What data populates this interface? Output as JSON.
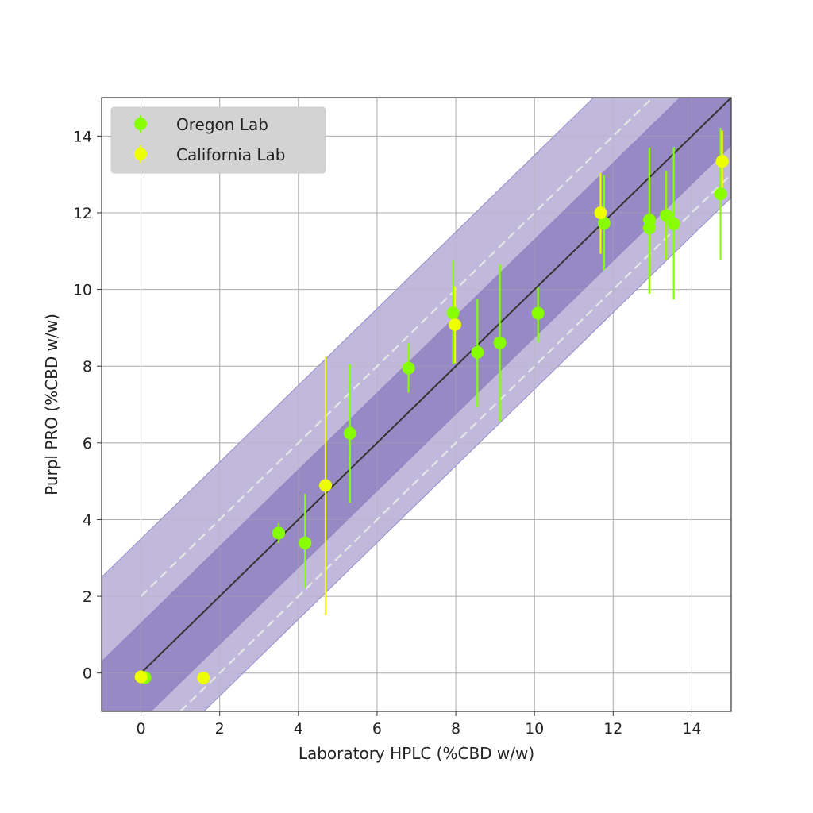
{
  "chart_data": {
    "type": "scatter",
    "xlabel": "Laboratory HPLC (%CBD w/w)",
    "ylabel": "Purpl PRO (%CBD w/w)",
    "xlim": [
      -1,
      15
    ],
    "ylim": [
      -1,
      15
    ],
    "xticks": [
      0,
      2,
      4,
      6,
      8,
      10,
      12,
      14
    ],
    "yticks": [
      0,
      2,
      4,
      6,
      8,
      10,
      12,
      14
    ],
    "grid": true,
    "legend": {
      "placement": "top-left"
    },
    "reference_line": {
      "slope": 1,
      "intercept": 0,
      "color": "#333333"
    },
    "dashed_lines": {
      "offsets": [
        2,
        -2
      ],
      "color": "#e6e6e6"
    },
    "bands": {
      "inner": {
        "upper_offset": 1.3,
        "lower_offset": -1.25,
        "color": "#978ac4"
      },
      "outer": {
        "upper_offset": 3.5,
        "lower_offset": -2.6,
        "color": "#c0b9dc"
      }
    },
    "series": [
      {
        "name": "Oregon Lab",
        "color": "#88ff00",
        "points": [
          {
            "x": 0.1,
            "y": -0.12,
            "ylow": -0.12,
            "yhigh": -0.12
          },
          {
            "x": 3.5,
            "y": 3.65,
            "ylow": 3.39,
            "yhigh": 3.91
          },
          {
            "x": 4.17,
            "y": 3.39,
            "ylow": 2.22,
            "yhigh": 4.67
          },
          {
            "x": 5.31,
            "y": 6.25,
            "ylow": 4.44,
            "yhigh": 8.05
          },
          {
            "x": 6.8,
            "y": 7.95,
            "ylow": 7.31,
            "yhigh": 8.6
          },
          {
            "x": 7.93,
            "y": 9.39,
            "ylow": 8.05,
            "yhigh": 10.75
          },
          {
            "x": 8.55,
            "y": 8.36,
            "ylow": 6.94,
            "yhigh": 9.76
          },
          {
            "x": 9.12,
            "y": 8.61,
            "ylow": 6.56,
            "yhigh": 10.65
          },
          {
            "x": 10.09,
            "y": 9.38,
            "ylow": 8.62,
            "yhigh": 10.05
          },
          {
            "x": 11.77,
            "y": 11.73,
            "ylow": 10.5,
            "yhigh": 12.98
          },
          {
            "x": 12.92,
            "y": 11.81,
            "ylow": 9.89,
            "yhigh": 13.69
          },
          {
            "x": 12.92,
            "y": 11.6,
            "ylow": 9.89,
            "yhigh": 13.69
          },
          {
            "x": 13.35,
            "y": 11.93,
            "ylow": 10.77,
            "yhigh": 13.09
          },
          {
            "x": 13.54,
            "y": 11.71,
            "ylow": 9.74,
            "yhigh": 13.71
          },
          {
            "x": 14.73,
            "y": 12.49,
            "ylow": 10.76,
            "yhigh": 14.21
          }
        ]
      },
      {
        "name": "California Lab",
        "color": "#eeff00",
        "points": [
          {
            "x": 0.0,
            "y": -0.1,
            "ylow": -0.1,
            "yhigh": -0.1
          },
          {
            "x": 1.59,
            "y": -0.13,
            "ylow": -0.13,
            "yhigh": -0.13
          },
          {
            "x": 4.69,
            "y": 4.89,
            "ylow": 1.51,
            "yhigh": 8.25
          },
          {
            "x": 7.98,
            "y": 9.08,
            "ylow": 8.08,
            "yhigh": 10.08
          },
          {
            "x": 11.68,
            "y": 12.0,
            "ylow": 10.93,
            "yhigh": 13.03
          },
          {
            "x": 14.77,
            "y": 13.34,
            "ylow": 12.5,
            "yhigh": 14.14
          }
        ]
      }
    ]
  }
}
